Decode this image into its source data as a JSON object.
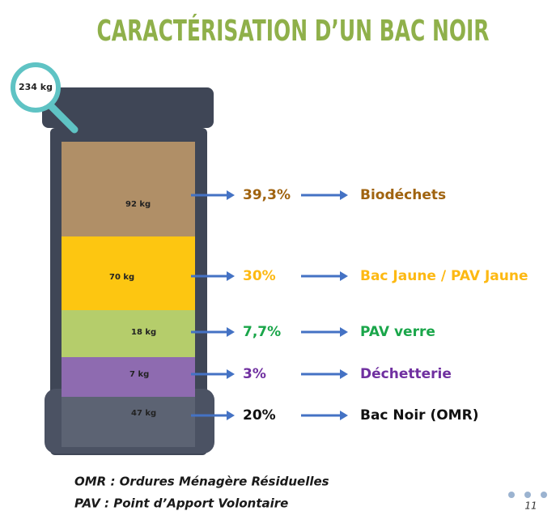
{
  "title": "CARACTÉRISATION D’UN BAC NOIR",
  "total": "234 kg",
  "segments": [
    {
      "weight": "92 kg",
      "percent": "39,3%",
      "label": "Biodéchets",
      "fill": "#b08f67",
      "color": "#a0630f"
    },
    {
      "weight": "70 kg",
      "percent": "30%",
      "label": "Bac Jaune / PAV Jaune",
      "fill": "#fdc611",
      "color": "#fdb913"
    },
    {
      "weight": "18 kg",
      "percent": "7,7%",
      "label": "PAV verre",
      "fill": "#b5cd6b",
      "color": "#1aa64a"
    },
    {
      "weight": "7 kg",
      "percent": "3%",
      "label": "Déchetterie",
      "fill": "#8e6bb0",
      "color": "#7030a0"
    },
    {
      "weight": "47 kg",
      "percent": "20%",
      "label": "Bac Noir (OMR)",
      "fill": "#5c6373",
      "color": "#111111"
    }
  ],
  "footnotes": [
    "OMR : Ordures Ménagère Résiduelles",
    "PAV : Point d’Apport Volontaire"
  ],
  "page_number": "11"
}
